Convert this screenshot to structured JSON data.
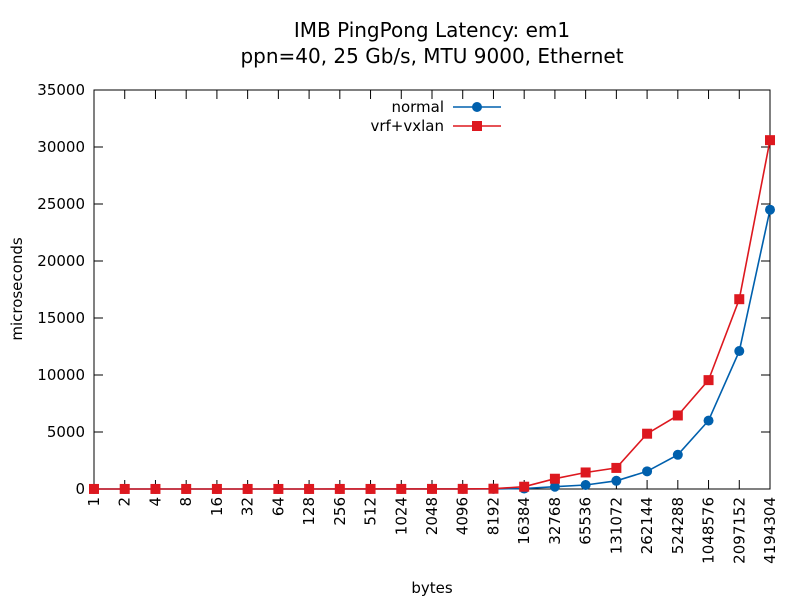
{
  "chart_data": {
    "type": "line",
    "title": "IMB PingPong Latency: em1",
    "subtitle": "ppn=40, 25 Gb/s, MTU 9000, Ethernet",
    "xlabel": "bytes",
    "ylabel": "microseconds",
    "categories": [
      "1",
      "2",
      "4",
      "8",
      "16",
      "32",
      "64",
      "128",
      "256",
      "512",
      "1024",
      "2048",
      "4096",
      "8192",
      "16384",
      "32768",
      "65536",
      "131072",
      "262144",
      "524288",
      "1048576",
      "2097152",
      "4194304"
    ],
    "ylim": [
      0,
      35000
    ],
    "yticks": [
      0,
      5000,
      10000,
      15000,
      20000,
      25000,
      30000,
      35000
    ],
    "grid": false,
    "legend_position": "top-center",
    "series": [
      {
        "name": "normal",
        "color": "#0060ad",
        "marker": "circle",
        "values": [
          3,
          3,
          3,
          3,
          3,
          3,
          3,
          3,
          4,
          4,
          5,
          6,
          8,
          12,
          40,
          200,
          350,
          720,
          1550,
          3000,
          6000,
          12100,
          24500
        ]
      },
      {
        "name": "vrf+vxlan",
        "color": "#dd181f",
        "marker": "square",
        "values": [
          4,
          4,
          4,
          4,
          4,
          4,
          4,
          4,
          5,
          5,
          6,
          8,
          11,
          25,
          200,
          900,
          1450,
          1850,
          4850,
          6450,
          9550,
          16650,
          30600
        ]
      }
    ]
  }
}
